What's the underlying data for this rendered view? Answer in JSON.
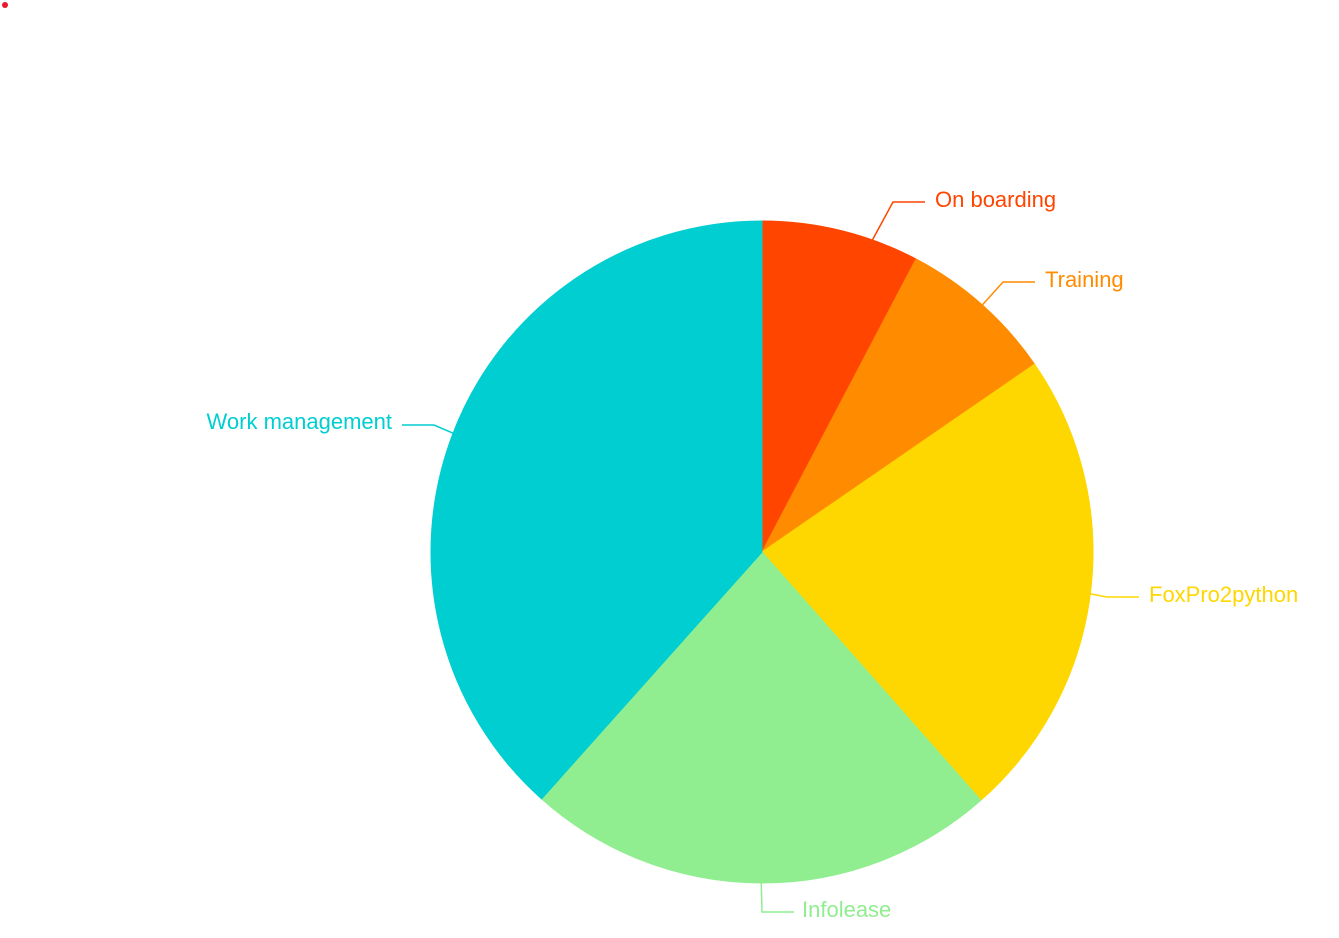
{
  "chart_data": {
    "type": "pie",
    "start_angle_deg": 0,
    "direction": "clockwise",
    "slices": [
      {
        "label": "On boarding",
        "value": 7.7,
        "color": "#ff4500"
      },
      {
        "label": "Training",
        "value": 7.7,
        "color": "#ff8c00"
      },
      {
        "label": "FoxPro2python",
        "value": 23.1,
        "color": "#ffd700"
      },
      {
        "label": "Infolease",
        "value": 23.1,
        "color": "#90ee90"
      },
      {
        "label": "Work management",
        "value": 38.4,
        "color": "#00ced1"
      }
    ],
    "legend": "none",
    "labels": "outside-with-leader-lines"
  },
  "marker_color": "#e8192c"
}
